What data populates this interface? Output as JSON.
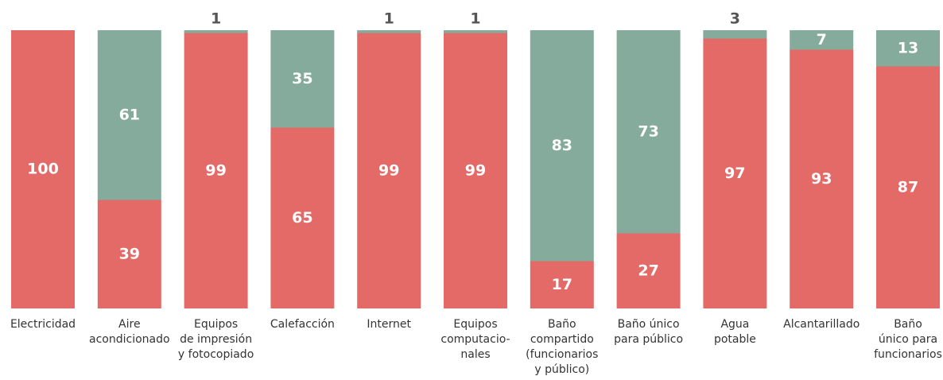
{
  "chart_data": {
    "type": "stacked_bar",
    "categories": [
      [
        "Electricidad"
      ],
      [
        "Aire",
        "acondicionado"
      ],
      [
        "Equipos",
        "de impresión",
        "y fotocopiado"
      ],
      [
        "Calefacción"
      ],
      [
        "Internet"
      ],
      [
        "Equipos",
        "computacio-",
        "nales"
      ],
      [
        "Baño",
        "compartido",
        "(funcionarios",
        "y público)"
      ],
      [
        "Baño único",
        "para público"
      ],
      [
        "Agua",
        "potable"
      ],
      [
        "Alcantarillado"
      ],
      [
        "Baño",
        "único para",
        "funcionarios"
      ]
    ],
    "series": [
      {
        "color": "#e46a68",
        "values": [
          100,
          39,
          99,
          65,
          99,
          99,
          17,
          27,
          97,
          93,
          87
        ]
      },
      {
        "color": "#84ab9c",
        "values": [
          0,
          61,
          1,
          35,
          1,
          1,
          83,
          73,
          3,
          7,
          13
        ]
      }
    ],
    "ylim": [
      0,
      100
    ]
  }
}
